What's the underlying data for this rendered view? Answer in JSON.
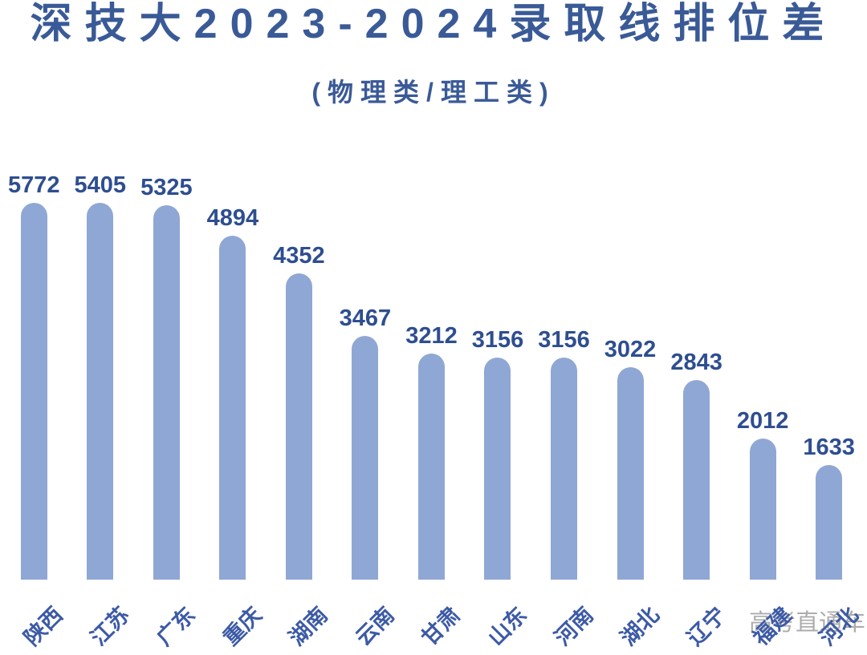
{
  "page": {
    "title": "深技大2023-2024录取线排位差",
    "subtitle": "(物理类/理工类)",
    "watermark": "高考直通车"
  },
  "colors": {
    "title_text": "#3A5A97",
    "bar_fill": "#8FA7D4",
    "value_label_text": "#2E4E90",
    "axis_label_text": "#3C5AA5",
    "watermark_text": "#9E9EA0",
    "background": "#FFFFFF"
  },
  "chart_data": {
    "type": "bar",
    "title": "深技大2023-2024录取线排位差",
    "subtitle": "(物理类/理工类)",
    "categories": [
      "陕西",
      "江苏",
      "广东",
      "重庆",
      "湖南",
      "云南",
      "甘肃",
      "山东",
      "河南",
      "湖北",
      "辽宁",
      "福建",
      "河北"
    ],
    "values": [
      5772,
      5405,
      5325,
      4894,
      4352,
      3467,
      3212,
      3156,
      3156,
      3022,
      2843,
      2012,
      1633
    ],
    "xlabel": "",
    "ylabel": "",
    "ylim": [
      0,
      5772
    ],
    "grid": false,
    "legend": false,
    "bar_style": "rounded-top",
    "data_labels": "above-bars",
    "category_label_rotation_deg": -45
  }
}
